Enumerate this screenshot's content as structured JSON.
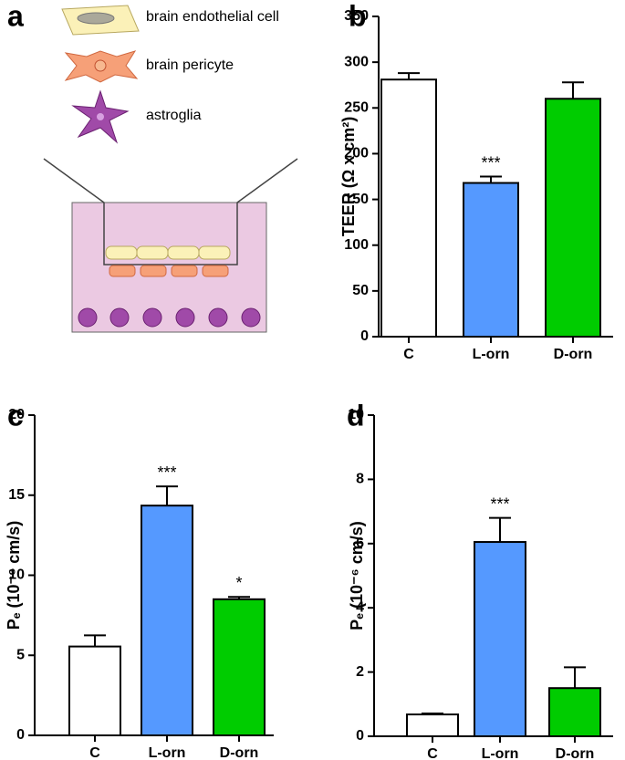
{
  "diagram": {
    "panel": "a",
    "legend": [
      "brain endothelial cell",
      "brain pericyte",
      "astroglia"
    ]
  },
  "chart_data": [
    {
      "type": "bar",
      "panel": "b",
      "y_label": "TEER (Ω x cm²)",
      "categories": [
        "C",
        "L-orn",
        "D-orn"
      ],
      "values": [
        281,
        168,
        260
      ],
      "errors": [
        7,
        7,
        18
      ],
      "annotations": [
        null,
        "***",
        null
      ],
      "colors": [
        "#ffffff",
        "#5599ff",
        "#00cc00"
      ],
      "ylim": [
        0,
        350
      ],
      "yticks": [
        0,
        50,
        100,
        150,
        200,
        250,
        300,
        350
      ]
    },
    {
      "type": "bar",
      "panel": "c",
      "y_label": "Pₑ (10⁻⁶ cm/s)",
      "categories": [
        "C",
        "L-orn",
        "D-orn"
      ],
      "values": [
        5.55,
        14.35,
        8.5
      ],
      "errors": [
        0.7,
        1.2,
        0.15
      ],
      "annotations": [
        null,
        "***",
        "*"
      ],
      "colors": [
        "#ffffff",
        "#5599ff",
        "#00cc00"
      ],
      "ylim": [
        0,
        20
      ],
      "yticks": [
        0,
        5,
        10,
        15,
        20
      ]
    },
    {
      "type": "bar",
      "panel": "d",
      "y_label": "Pₑ (10⁻⁶ cm/s)",
      "categories": [
        "C",
        "L-orn",
        "D-orn"
      ],
      "values": [
        0.68,
        6.05,
        1.5
      ],
      "errors": [
        0.03,
        0.75,
        0.65
      ],
      "annotations": [
        null,
        "***",
        null
      ],
      "colors": [
        "#ffffff",
        "#5599ff",
        "#00cc00"
      ],
      "ylim": [
        0,
        10
      ],
      "yticks": [
        0,
        2,
        4,
        6,
        8,
        10
      ]
    }
  ]
}
